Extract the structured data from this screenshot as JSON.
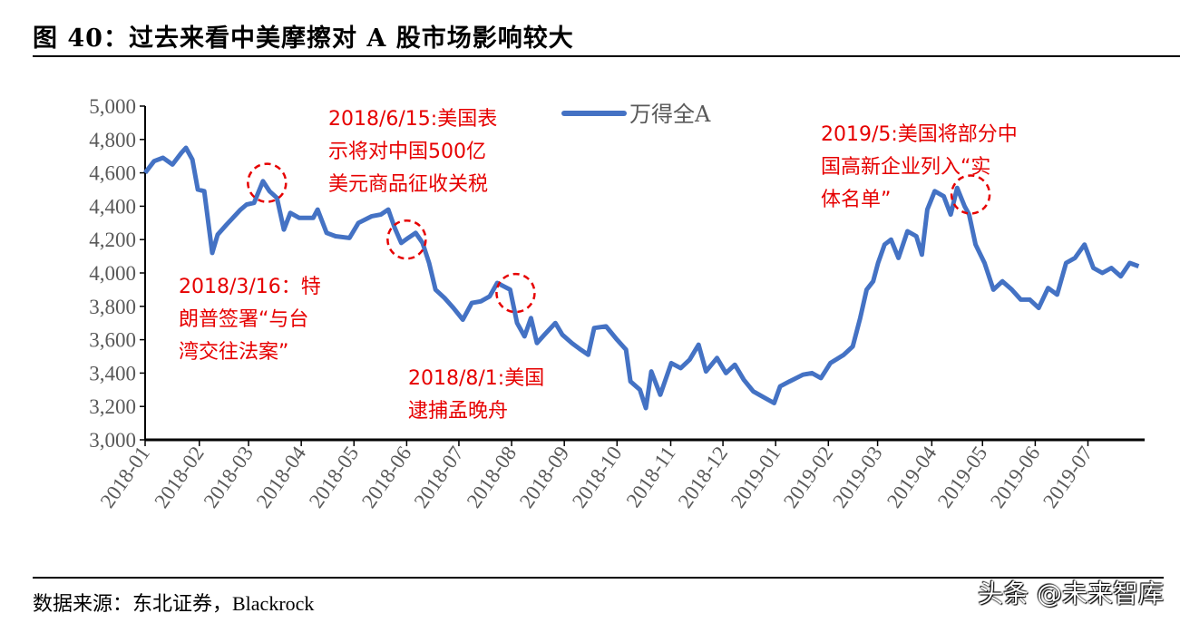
{
  "header": {
    "title": "图 40：过去来看中美摩擦对 A 股市场影响较大"
  },
  "footer": {
    "source": "数据来源：东北证券，Blackrock",
    "watermark": "头条 @未来智库"
  },
  "colors": {
    "line": "#4472c4",
    "annotation": "#e60000",
    "axis": "#000000",
    "tick_text": "#595959"
  },
  "chart_data": {
    "type": "line",
    "title": "",
    "xlabel": "",
    "ylabel": "",
    "ylim": [
      3000,
      5000
    ],
    "yticks": [
      3000,
      3200,
      3400,
      3600,
      3800,
      4000,
      4200,
      4400,
      4600,
      4800,
      5000
    ],
    "ytick_labels": [
      "3,000",
      "3,200",
      "3,400",
      "3,600",
      "3,800",
      "4,000",
      "4,200",
      "4,400",
      "4,600",
      "4,800",
      "5,000"
    ],
    "x_unit": "trading-month index from 2018-01",
    "xlim": [
      0,
      20.1
    ],
    "xtick_positions": [
      0,
      1.09,
      2.08,
      3.14,
      4.2,
      5.26,
      6.31,
      7.37,
      8.43,
      9.49,
      10.57,
      11.62,
      12.68,
      13.74,
      14.73,
      15.82,
      16.84,
      17.9,
      18.96
    ],
    "xtick_labels": [
      "2018-01",
      "2018-02",
      "2018-03",
      "2018-04",
      "2018-05",
      "2018-06",
      "2018-07",
      "2018-08",
      "2018-09",
      "2018-10",
      "2018-11",
      "2018-12",
      "2019-01",
      "2019-02",
      "2019-03",
      "2019-04",
      "2019-05",
      "2019-06",
      "2019-07"
    ],
    "legend": {
      "position": "top-center",
      "entries": [
        "万得全A"
      ]
    },
    "grid": false,
    "series": [
      {
        "name": "万得全A",
        "x": [
          0,
          0.18,
          0.36,
          0.55,
          0.73,
          0.82,
          0.95,
          1.06,
          1.19,
          1.28,
          1.35,
          1.46,
          1.64,
          1.92,
          2.04,
          2.19,
          2.37,
          2.5,
          2.65,
          2.79,
          2.92,
          3.1,
          3.38,
          3.47,
          3.65,
          3.83,
          4.11,
          4.29,
          4.56,
          4.74,
          4.89,
          5.02,
          5.15,
          5.29,
          5.44,
          5.58,
          5.71,
          5.84,
          6.02,
          6.2,
          6.39,
          6.57,
          6.75,
          6.93,
          7.08,
          7.21,
          7.34,
          7.48,
          7.63,
          7.76,
          7.88,
          8.03,
          8.25,
          8.39,
          8.58,
          8.76,
          8.91,
          9.03,
          9.27,
          9.49,
          9.67,
          9.76,
          9.95,
          10.07,
          10.18,
          10.36,
          10.58,
          10.77,
          10.95,
          11.13,
          11.28,
          11.5,
          11.68,
          11.86,
          12.04,
          12.23,
          12.41,
          12.65,
          12.77,
          12.96,
          13.23,
          13.41,
          13.59,
          13.78,
          14.05,
          14.23,
          14.38,
          14.51,
          14.64,
          14.74,
          14.87,
          15.0,
          15.15,
          15.33,
          15.51,
          15.62,
          15.73,
          15.88,
          16.06,
          16.2,
          16.33,
          16.48,
          16.57,
          16.7,
          16.88,
          17.06,
          17.24,
          17.43,
          17.61,
          17.79,
          17.97,
          18.16,
          18.34,
          18.52,
          18.7,
          18.89,
          19.07,
          19.25,
          19.43,
          19.62,
          19.8,
          19.98
        ],
        "values": [
          4600,
          4670,
          4690,
          4650,
          4720,
          4750,
          4680,
          4500,
          4490,
          4280,
          4120,
          4230,
          4290,
          4380,
          4410,
          4420,
          4550,
          4490,
          4450,
          4260,
          4360,
          4330,
          4330,
          4380,
          4240,
          4220,
          4210,
          4300,
          4340,
          4350,
          4380,
          4270,
          4180,
          4210,
          4240,
          4180,
          4060,
          3900,
          3850,
          3790,
          3720,
          3820,
          3830,
          3860,
          3940,
          3920,
          3900,
          3700,
          3620,
          3730,
          3580,
          3630,
          3700,
          3630,
          3580,
          3540,
          3510,
          3670,
          3680,
          3600,
          3540,
          3350,
          3300,
          3190,
          3410,
          3270,
          3460,
          3430,
          3480,
          3570,
          3410,
          3490,
          3400,
          3450,
          3360,
          3290,
          3260,
          3220,
          3320,
          3350,
          3390,
          3400,
          3370,
          3460,
          3510,
          3560,
          3730,
          3900,
          3950,
          4060,
          4170,
          4200,
          4090,
          4250,
          4220,
          4110,
          4380,
          4490,
          4460,
          4350,
          4510,
          4400,
          4350,
          4170,
          4060,
          3900,
          3950,
          3900,
          3840,
          3840,
          3790,
          3910,
          3870,
          4060,
          4090,
          4170,
          4030,
          4000,
          4030,
          3980,
          4060,
          4040
        ]
      }
    ],
    "annotations": [
      {
        "lines": [
          "2018/6/15:美国表",
          "示将对中国500亿",
          "美元商品征收关税"
        ],
        "event_x": 5.26,
        "event_value": 4200
      },
      {
        "lines": [
          "2018/3/16：特",
          "朗普签署“与台",
          "湾交往法案”"
        ],
        "event_x": 2.45,
        "event_value": 4540
      },
      {
        "lines": [
          "2018/8/1:美国",
          "逮捕孟晚舟"
        ],
        "event_x": 7.45,
        "event_value": 3880
      },
      {
        "lines": [
          "2019/5:美国将部分中",
          "国高新企业列入“实",
          "体名单”"
        ],
        "event_x": 16.6,
        "event_value": 4470
      }
    ]
  }
}
